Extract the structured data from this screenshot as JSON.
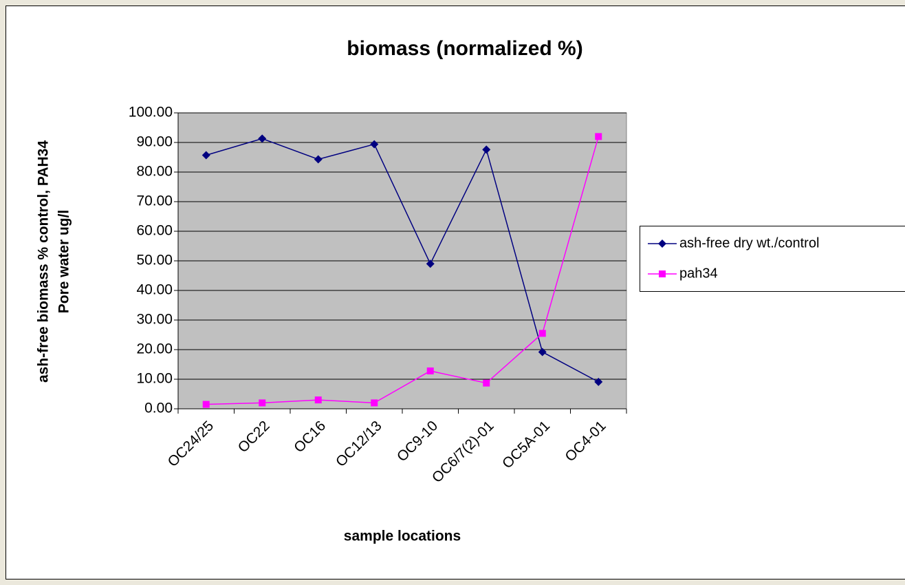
{
  "chart_data": {
    "type": "line",
    "title": "biomass  (normalized %)",
    "xlabel": "sample locations",
    "ylabel": [
      "ash-free biomass % control, PAH34",
      "Pore water ug/l"
    ],
    "categories": [
      "OC24/25",
      "OC22",
      "OC16",
      "OC12/13",
      "OC9-10",
      "OC6/7(2)-01",
      "OC5A-01",
      "OC4-01"
    ],
    "series": [
      {
        "name": "ash-free dry wt./control",
        "color": "#000080",
        "marker": "diamond",
        "values": [
          85.7,
          91.3,
          84.3,
          89.4,
          49.0,
          87.6,
          19.2,
          9.1
        ]
      },
      {
        "name": "pah34",
        "color": "#ff00ff",
        "marker": "square",
        "values": [
          1.5,
          2.0,
          3.0,
          2.0,
          12.8,
          8.7,
          25.5,
          92.0
        ]
      }
    ],
    "ylim": [
      0,
      100
    ],
    "yticks": [
      {
        "value": 0,
        "label": "0.00"
      },
      {
        "value": 10,
        "label": "10.00"
      },
      {
        "value": 20,
        "label": "20.00"
      },
      {
        "value": 30,
        "label": "30.00"
      },
      {
        "value": 40,
        "label": "40.00"
      },
      {
        "value": 50,
        "label": "50.00"
      },
      {
        "value": 60,
        "label": "60.00"
      },
      {
        "value": 70,
        "label": "70.00"
      },
      {
        "value": 80,
        "label": "80.00"
      },
      {
        "value": 90,
        "label": "90.00"
      },
      {
        "value": 100,
        "label": "100.00"
      }
    ],
    "grid": true,
    "legend": "right",
    "plot_background": "#c0c0c0"
  }
}
